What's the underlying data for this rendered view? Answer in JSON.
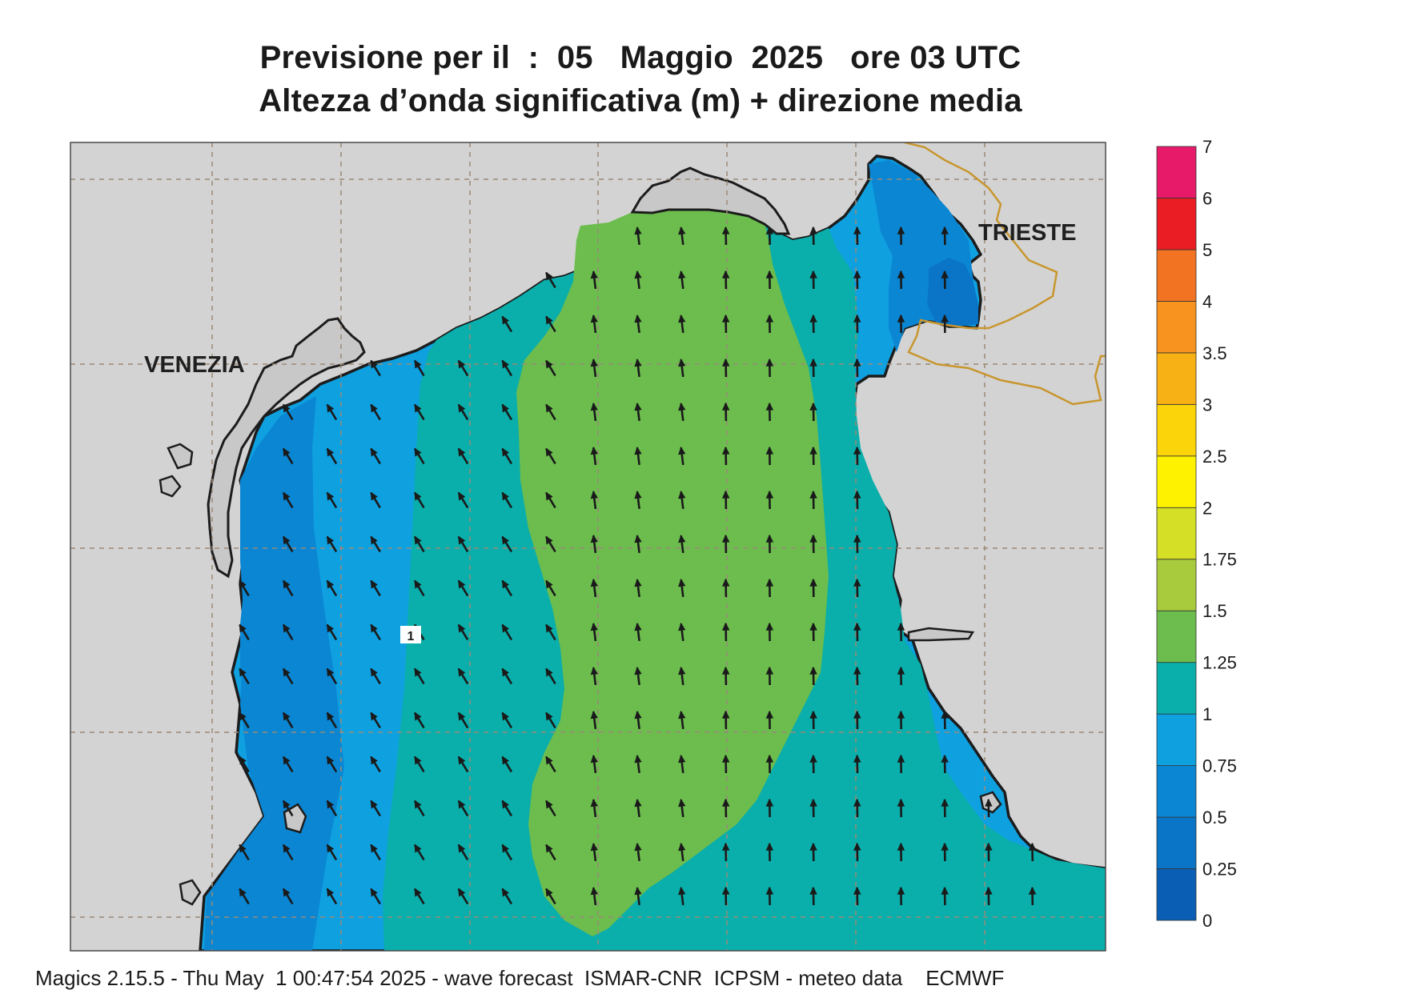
{
  "header": {
    "title_line1": "Previsione per il  :  05   Maggio  2025   ore 03 UTC",
    "title_line2": "Altezza d’onda significativa (m) + direzione media"
  },
  "map": {
    "region": "Adriatico settentrionale",
    "place_labels": [
      "VENEZIA",
      "TRIESTE"
    ],
    "contour_label": "1",
    "mean_wave_direction": "north-northwest (arrows pointing roughly up, slightly to the upper-left along the western coast)",
    "colors": {
      "land": "#d3d3d3",
      "coastline": "#1c1c1c",
      "border": "#c8962e",
      "graticule": "#9a8a78",
      "arrow": "#1a1a1a"
    }
  },
  "legend": {
    "title": "",
    "levels": [
      "0",
      "0.25",
      "0.5",
      "0.75",
      "1",
      "1.25",
      "1.5",
      "1.75",
      "2",
      "2.5",
      "3",
      "3.5",
      "4",
      "5",
      "6",
      "7"
    ],
    "colors": [
      "#0a5fb4",
      "#0a74c6",
      "#0b86d3",
      "#0fa0e0",
      "#0aaeaa",
      "#6cbd4e",
      "#a7cb3c",
      "#d5df26",
      "#fff200",
      "#fbd40a",
      "#f8b114",
      "#f7931e",
      "#f27321",
      "#ea1c24",
      "#e71a6a"
    ]
  },
  "footer": {
    "text": "Magics 2.15.5 - Thu May  1 00:47:54 2025 - wave forecast  ISMAR-CNR  ICPSM - meteo data    ECMWF"
  }
}
